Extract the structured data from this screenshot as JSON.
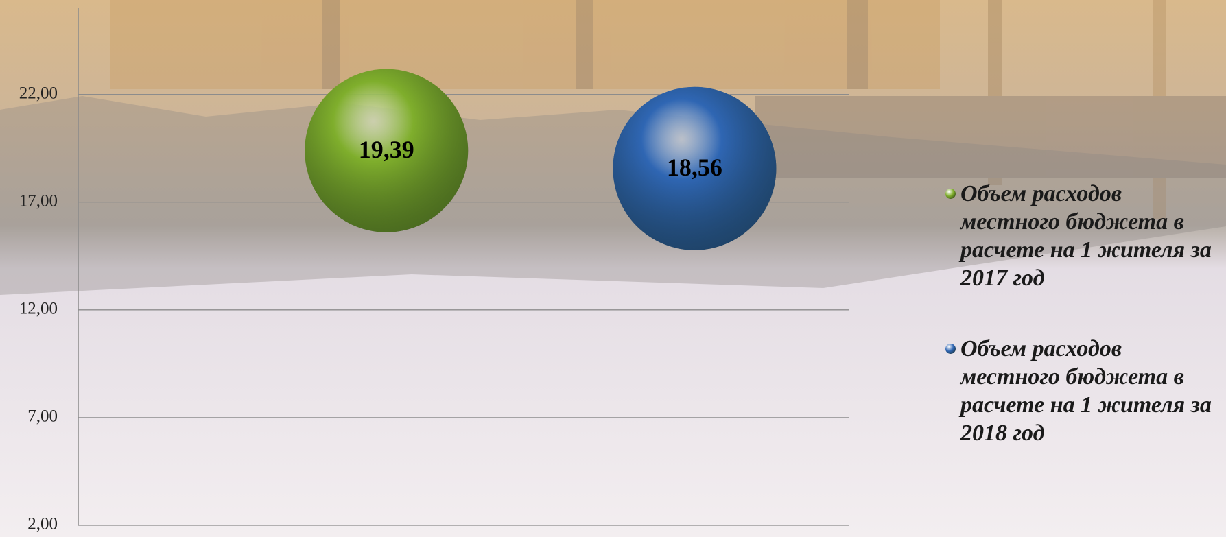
{
  "chart_data": {
    "type": "bubble",
    "series": [
      {
        "name": "Объем расходов местного бюджета в расчете на 1 жителя за 2017 год",
        "color": "#7fae2c",
        "x": [
          1
        ],
        "values": [
          19.39
        ],
        "value_labels": [
          "19,39"
        ]
      },
      {
        "name": "Объем расходов местного бюджета в расчете на 1 жителя за 2018 год",
        "color": "#2f66b3",
        "x": [
          2
        ],
        "values": [
          18.56
        ],
        "value_labels": [
          "18,56"
        ]
      }
    ],
    "xlim": [
      0,
      2.5
    ],
    "ylim": [
      2,
      26
    ],
    "yticks": [
      {
        "value": 2,
        "label": "2,00"
      },
      {
        "value": 7,
        "label": "7,00"
      },
      {
        "value": 12,
        "label": "12,00"
      },
      {
        "value": 17,
        "label": "17,00"
      },
      {
        "value": 22,
        "label": "22,00"
      }
    ],
    "grid": true,
    "legend": "right"
  }
}
